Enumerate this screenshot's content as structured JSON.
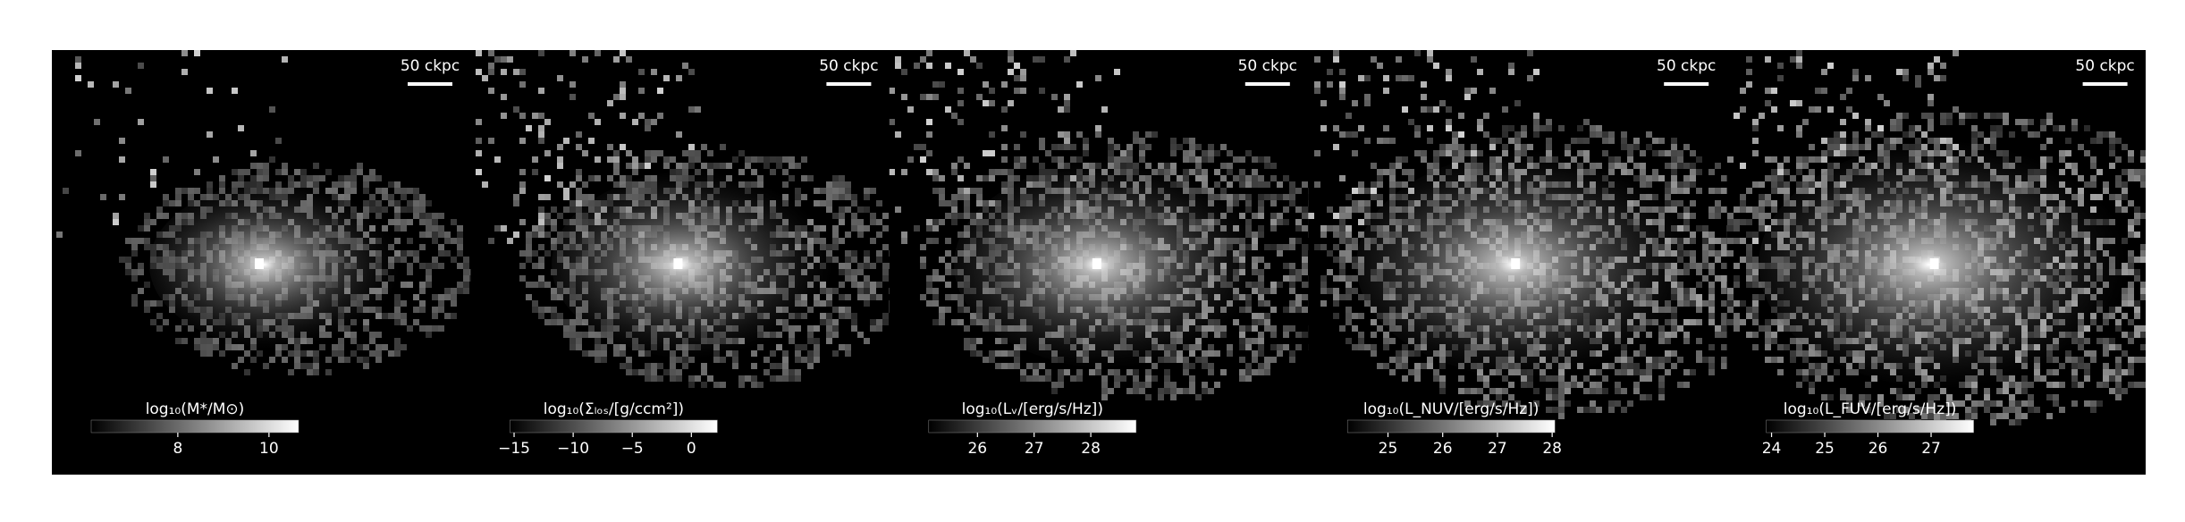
{
  "chart_data": [
    {
      "type": "image",
      "scalebar": "50 ckpc",
      "colorbar_label": "log₁₀(M*/M⊙)",
      "colormap": "gray",
      "clim": [
        6.1,
        10.65
      ],
      "cticks": [
        8,
        10
      ]
    },
    {
      "type": "image",
      "scalebar": "50 ckpc",
      "colorbar_label": "log₁₀(Σₗₒₛ/[g/ccm²])",
      "colormap": "gray",
      "clim": [
        -15.35,
        2.2
      ],
      "cticks": [
        {
          "value": -15,
          "label": "−15"
        },
        {
          "value": -10,
          "label": "−10"
        },
        {
          "value": -5,
          "label": "−5"
        },
        0
      ]
    },
    {
      "type": "image",
      "scalebar": "50 ckpc",
      "colorbar_label": "log₁₀(Lᵥ/[erg/s/Hz])",
      "colormap": "gray",
      "clim": [
        25.14,
        28.8
      ],
      "cticks": [
        26,
        27,
        28
      ]
    },
    {
      "type": "image",
      "scalebar": "50 ckpc",
      "colorbar_label": "log₁₀(L_NUV/[erg/s/Hz])",
      "colormap": "gray",
      "clim": [
        24.26,
        28.05
      ],
      "cticks": [
        25,
        26,
        27,
        28
      ]
    },
    {
      "type": "image",
      "scalebar": "50 ckpc",
      "colorbar_label": "log₁₀(L_FUV/[erg/s/Hz])",
      "colormap": "gray",
      "clim": [
        23.9,
        27.8
      ],
      "cticks": [
        24,
        25,
        26,
        27
      ]
    }
  ]
}
